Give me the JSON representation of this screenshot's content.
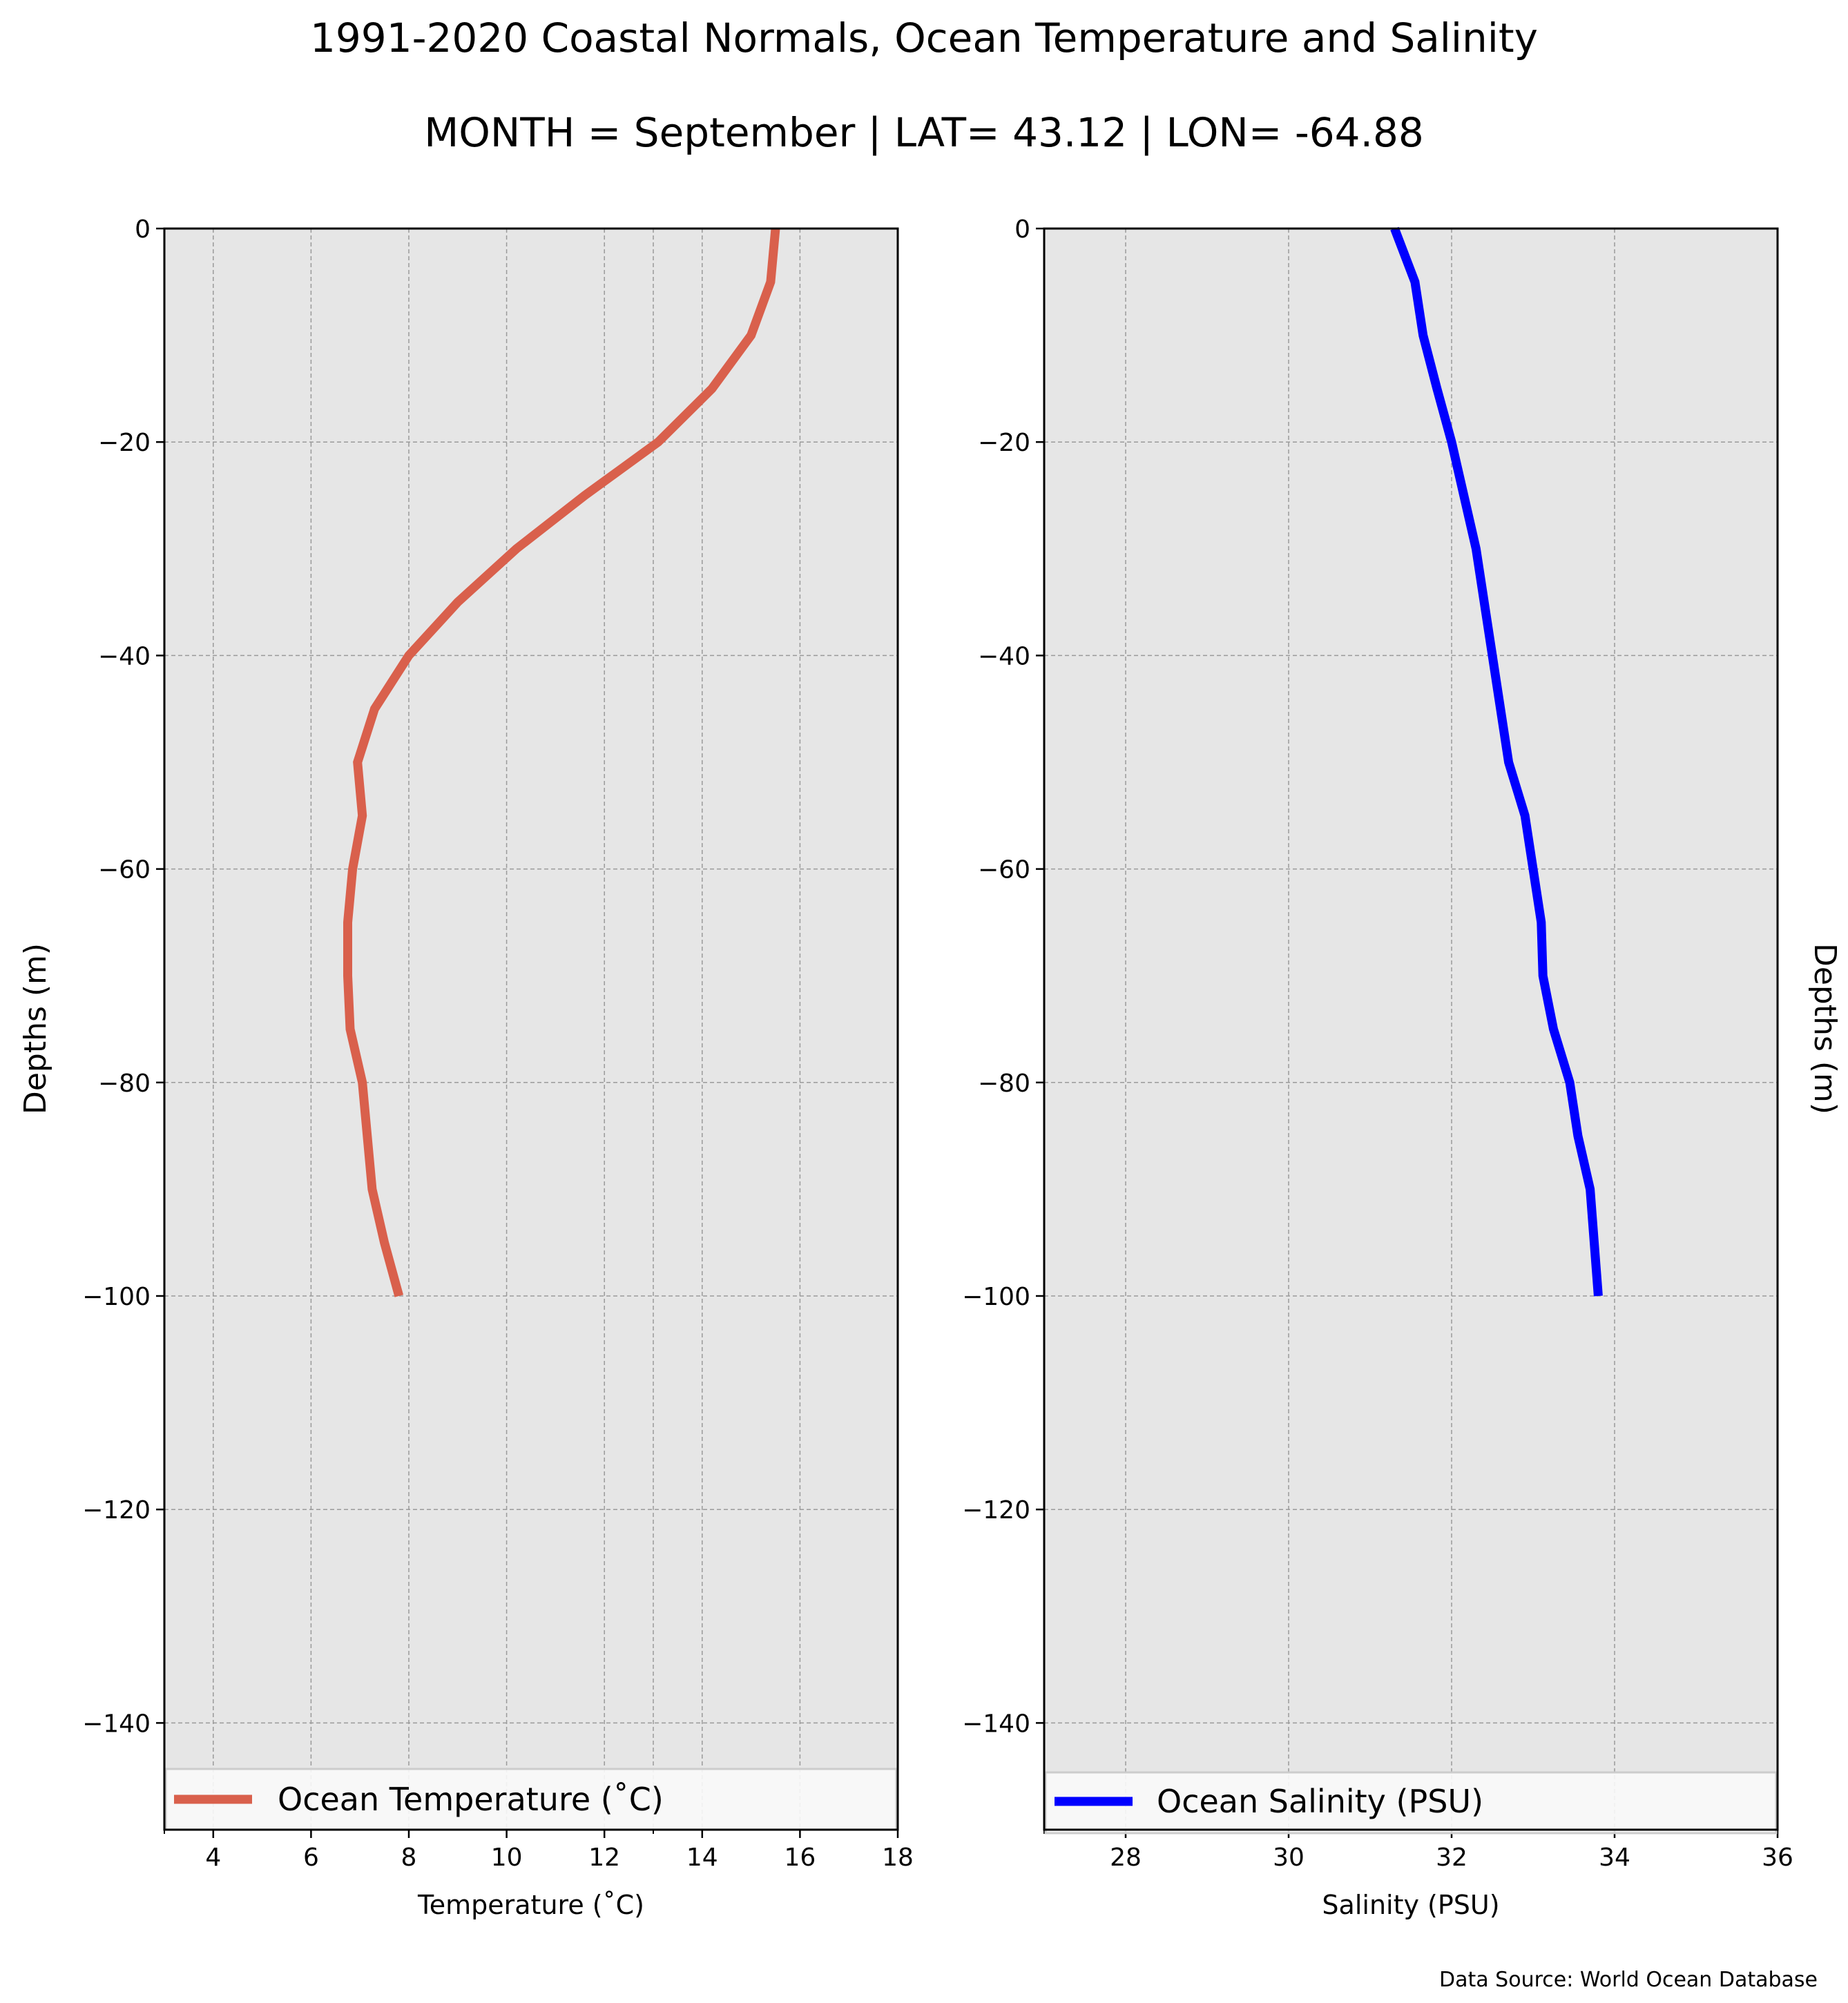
{
  "figure": {
    "title": "1991-2020 Coastal Normals, Ocean Temperature and Salinity",
    "subtitle": "MONTH = September | LAT= 43.12 | LON= -64.88",
    "source": "Data Source: World Ocean Database"
  },
  "chart_data": [
    {
      "type": "line",
      "xlabel": "Temperature ($^\\circ$C)",
      "xlabel_display": "Temperature (˚C)",
      "ylabel": "Depths (m)",
      "xlim": [
        3,
        18
      ],
      "ylim": [
        -150,
        0
      ],
      "xticks": [
        4,
        6,
        8,
        10,
        12,
        14,
        16,
        18
      ],
      "yticks": [
        0,
        -20,
        -40,
        -60,
        -80,
        -100,
        -120,
        -140
      ],
      "grid": true,
      "legend_position": "bottom",
      "series": [
        {
          "name": "Ocean Temperature (˚C)",
          "color": "#d9604c",
          "x": [
            15.5,
            15.4,
            15.0,
            14.2,
            13.1,
            11.6,
            10.2,
            9.0,
            8.0,
            7.3,
            6.95,
            7.05,
            6.85,
            6.75,
            6.75,
            6.8,
            7.05,
            7.25,
            7.5,
            7.8
          ],
          "y": [
            0,
            -5,
            -10,
            -15,
            -20,
            -25,
            -30,
            -35,
            -40,
            -45,
            -50,
            -55,
            -60,
            -65,
            -70,
            -75,
            -80,
            -90,
            -95,
            -100
          ]
        }
      ]
    },
    {
      "type": "line",
      "xlabel": "Salinity (PSU)",
      "ylabel": "Depths (m)",
      "xlim": [
        27,
        36
      ],
      "ylim": [
        -150,
        0
      ],
      "xticks": [
        28,
        30,
        32,
        34,
        36
      ],
      "yticks": [
        0,
        -20,
        -40,
        -60,
        -80,
        -100,
        -120,
        -140
      ],
      "grid": true,
      "legend_position": "bottom",
      "series": [
        {
          "name": "Ocean Salinity (PSU)",
          "color": "#0000ff",
          "x": [
            31.3,
            31.55,
            31.65,
            31.82,
            32.0,
            32.15,
            32.3,
            32.4,
            32.5,
            32.6,
            32.7,
            32.9,
            33.0,
            33.1,
            33.12,
            33.25,
            33.45,
            33.55,
            33.7,
            33.8
          ],
          "y": [
            0,
            -5,
            -10,
            -15,
            -20,
            -25,
            -30,
            -35,
            -40,
            -45,
            -50,
            -55,
            -60,
            -65,
            -70,
            -75,
            -80,
            -85,
            -90,
            -100
          ]
        }
      ]
    }
  ]
}
